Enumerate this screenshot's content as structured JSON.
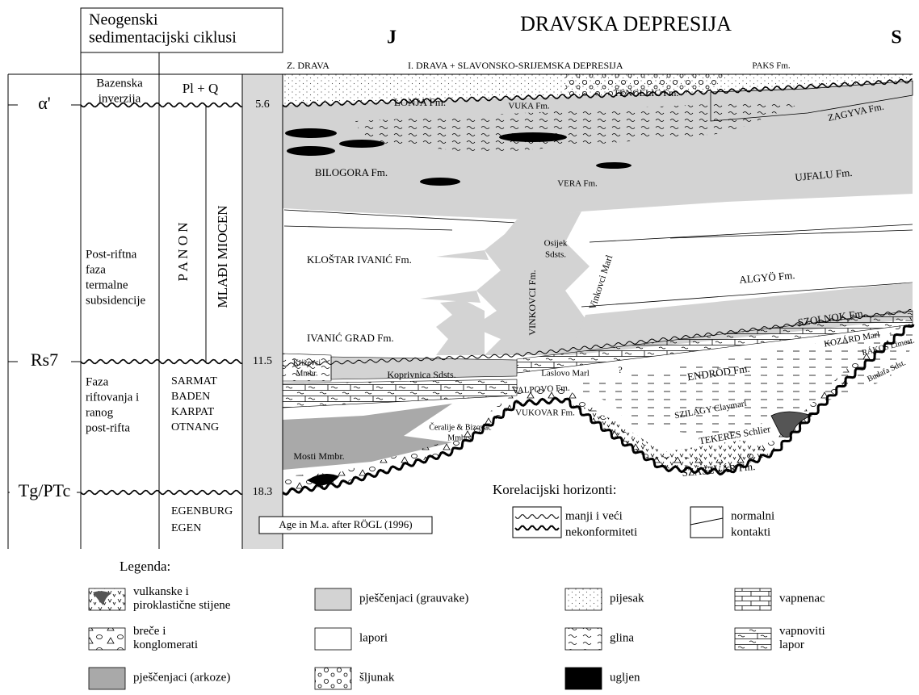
{
  "header": {
    "box_title": [
      "Neogenski",
      "sedimentacijski ciklusi"
    ],
    "title": "DRAVSKA DEPRESIJA",
    "south": "J",
    "north": "S",
    "regions": [
      "Z. DRAVA",
      "I. DRAVA + SLAVONSKO-SRIJEMSKA DEPRESIJA"
    ]
  },
  "horizons": [
    {
      "label": "α'",
      "age": "5.6"
    },
    {
      "label": "Rs7",
      "age": "11.5"
    },
    {
      "label": "Tg/PTc",
      "age": "18.3"
    }
  ],
  "phases": [
    [
      "Bazenska",
      "inverzija"
    ],
    [
      "Post-riftna",
      "faza",
      "termalne",
      "subsidencije"
    ],
    [
      "Faza",
      "riftovanja i",
      "ranog",
      "post-rifta"
    ]
  ],
  "stages": {
    "top": "Pl + Q",
    "panon": "P A N O N",
    "miocen": "MLAĐI MIOCEN",
    "lower": [
      "SARMAT",
      "BADEN",
      "KARPAT",
      "OTNANG"
    ],
    "bottom": [
      "EGENBURG",
      "EGEN"
    ]
  },
  "age_note": "Age in M.a. after RÖGL (1996)",
  "formations": [
    [
      "LONJA Fm."
    ],
    [
      "VUKA Fm."
    ],
    [
      "TENGELIC Fm."
    ],
    [
      "PAKS Fm."
    ],
    [
      "ZAGYVA Fm."
    ],
    [
      "BILOGORA Fm."
    ],
    [
      "VERA Fm."
    ],
    [
      "UJFALU Fm."
    ],
    [
      "KLOŠTAR IVANIĆ Fm."
    ],
    [
      "Osijek",
      "Sdsts."
    ],
    [
      "VINKOVCI Fm."
    ],
    [
      "Vinkovci Marl"
    ],
    [
      "ALGYÖ Fm."
    ],
    [
      "IVANIĆ GRAD Fm."
    ],
    [
      "SZOLNOK Fm."
    ],
    [
      "Laslovo Marl"
    ],
    [
      "?"
    ],
    [
      "ENDRÖD Fm."
    ],
    [
      "KOZÁRD Marl"
    ],
    [
      "RÁKOS Limest."
    ],
    [
      "Budafa Sdst."
    ],
    [
      "Križevci",
      "Mmbr."
    ],
    [
      "Koprivnica Sdsts."
    ],
    [
      "VALPOVO Fm."
    ],
    [
      "VUKOVAR Fm."
    ],
    [
      "SZILÁGY Claymarl"
    ],
    [
      "TEKERES Schlier"
    ],
    [
      "Čeralije & Bizovac",
      "Mmbrs."
    ],
    [
      "Mosti Mmbr."
    ],
    [
      "SZÁSZVÁR Fm."
    ]
  ],
  "correlation": {
    "title": "Korelacijski horizonti:",
    "items": [
      [
        "manji i veći",
        "nekonformiteti"
      ],
      [
        "normalni",
        "kontakti"
      ]
    ]
  },
  "legend": {
    "title": "Legenda:",
    "items": [
      [
        "vulkanske i",
        "piroklastične stijene"
      ],
      [
        "breče i",
        "konglomerati"
      ],
      [
        "pješčenjaci (arkoze)"
      ],
      [
        "pješčenjaci (grauvake)"
      ],
      [
        "lapori"
      ],
      [
        "šljunak"
      ],
      [
        "pijesak"
      ],
      [
        "glina"
      ],
      [
        "ugljen"
      ],
      [
        "vapnenac"
      ],
      [
        "vapnoviti",
        "lapor"
      ]
    ]
  }
}
